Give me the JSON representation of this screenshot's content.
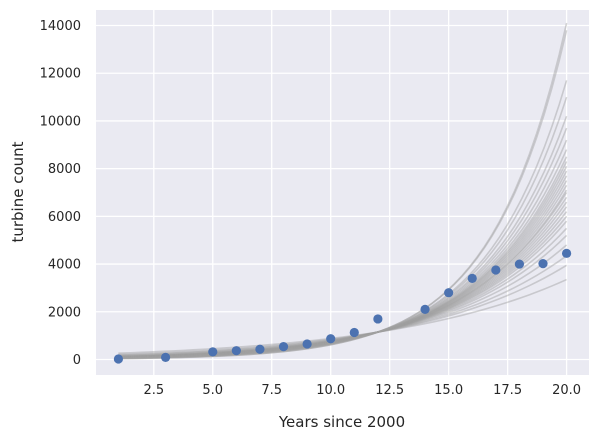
{
  "chart_data": {
    "type": "scatter",
    "xlabel": "Years since 2000",
    "ylabel": "turbine count",
    "xlim": [
      0.05,
      20.95
    ],
    "ylim": [
      -650,
      14650
    ],
    "xticks": [
      "2.5",
      "5.0",
      "7.5",
      "10.0",
      "12.5",
      "15.0",
      "17.5",
      "20.0"
    ],
    "yticks": [
      "0",
      "2000",
      "4000",
      "6000",
      "8000",
      "10000",
      "12000",
      "14000"
    ],
    "grid": true,
    "background": "#eaeaf2",
    "point_color": "#4c72b0",
    "line_color": "#a0a0a0",
    "observed": {
      "x": [
        1,
        3,
        5,
        6,
        7,
        8,
        9,
        10,
        11,
        12,
        14,
        15,
        16,
        17,
        18,
        19,
        20
      ],
      "y": [
        20,
        90,
        320,
        370,
        430,
        540,
        650,
        870,
        1130,
        1700,
        2100,
        2800,
        3400,
        3750,
        4000,
        4020,
        4450
      ]
    },
    "posterior_curves": {
      "x_range": [
        1,
        20
      ],
      "values_at_x20": [
        3350,
        3950,
        4350,
        4800,
        5200,
        5500,
        5800,
        6000,
        6200,
        6400,
        6600,
        6800,
        7000,
        7100,
        7300,
        7500,
        7700,
        7900,
        8100,
        8300,
        8500,
        8800,
        9200,
        9700,
        10200,
        11000,
        11700,
        13800,
        14100
      ],
      "value_at_x12": 1150
    }
  }
}
